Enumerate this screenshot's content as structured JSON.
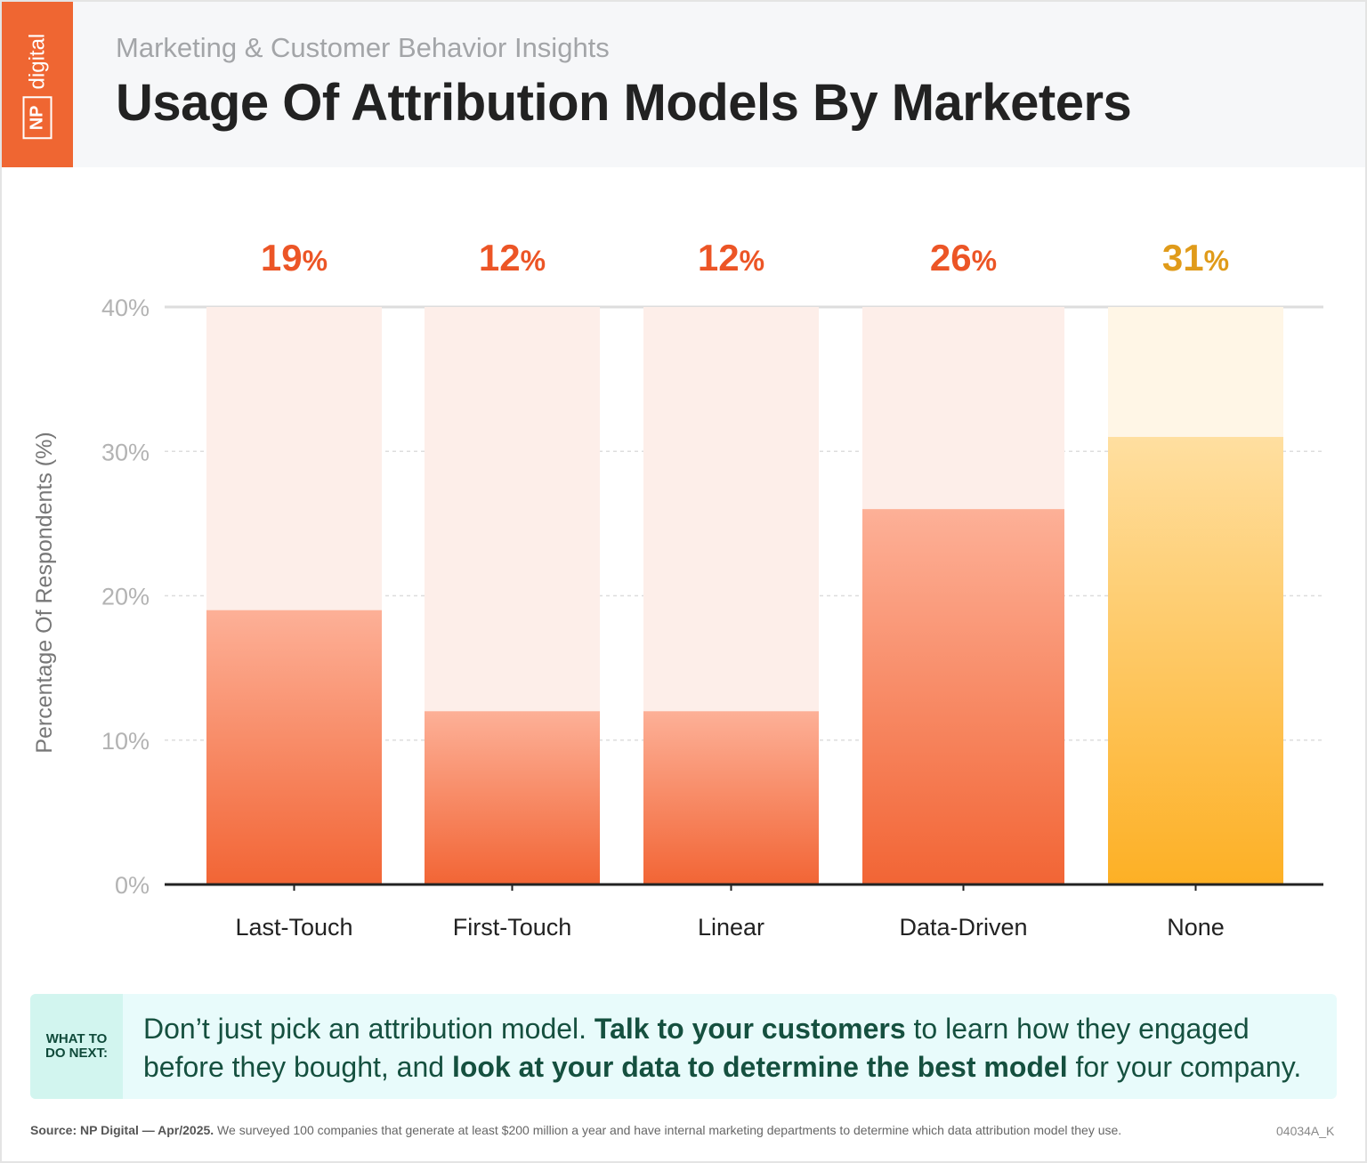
{
  "header": {
    "logo_np": "NP",
    "logo_digital": "digital",
    "subtitle": "Marketing & Customer Behavior Insights",
    "title": "Usage Of Attribution Models By Marketers"
  },
  "chart_data": {
    "type": "bar",
    "title": "Usage Of Attribution Models By Marketers",
    "xlabel": "",
    "ylabel": "Percentage Of Respondents (%)",
    "ylim": [
      0,
      40
    ],
    "yticks": [
      "0%",
      "10%",
      "20%",
      "30%",
      "40%"
    ],
    "categories": [
      "Last-Touch",
      "First-Touch",
      "Linear",
      "Data-Driven",
      "None"
    ],
    "values": [
      19,
      12,
      12,
      26,
      31
    ],
    "value_labels": [
      "19",
      "12",
      "12",
      "26",
      "31"
    ],
    "percent_sign": "%",
    "colors": {
      "orange_top": "#fdb097",
      "orange_bottom": "#f26535",
      "orange_bg": "#fdeee9",
      "orange_label": "#ec5526",
      "yellow_top": "#ffdfa0",
      "yellow_bottom": "#fdb025",
      "yellow_bg": "#fff6e6",
      "yellow_label": "#e09b1a"
    },
    "grid": true
  },
  "tip": {
    "tag_line1": "WHAT TO",
    "tag_line2": "DO NEXT:",
    "t1": "Don’t just pick an attribution model. ",
    "b1": "Talk to your customers",
    "t2": " to learn how they engaged before they bought, and ",
    "b2": "look at your data to determine the best model",
    "t3": " for your company."
  },
  "footer": {
    "source_bold": "Source: NP Digital — Apr/2025.",
    "source_text": " We surveyed 100 companies that generate at least $200 million a year and have internal marketing departments to determine which data attribution model they use.",
    "code": "04034A_K"
  }
}
